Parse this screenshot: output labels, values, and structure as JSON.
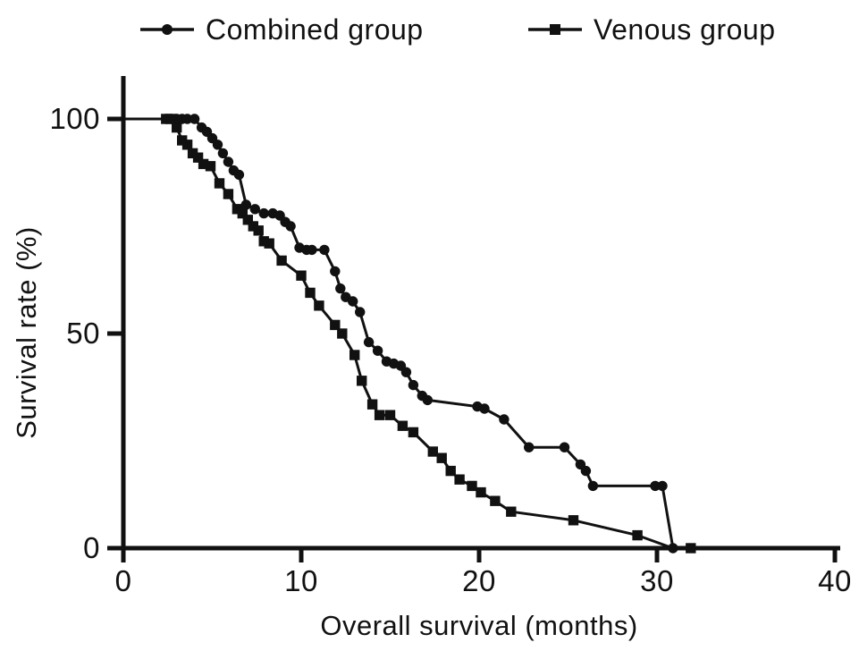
{
  "figure": {
    "background_color": "#ffffff",
    "ink_color": "#111111"
  },
  "legend": {
    "position": "top",
    "entries": [
      {
        "label": "Combined group",
        "marker": "circle"
      },
      {
        "label": "Venous group",
        "marker": "square"
      }
    ]
  },
  "chart_data": {
    "type": "line",
    "title": "",
    "xlabel": "Overall survival (months)",
    "ylabel": "Survival rate (%)",
    "xlim": [
      0,
      40
    ],
    "ylim": [
      0,
      100
    ],
    "xticks": [
      0,
      10,
      20,
      30,
      40
    ],
    "yticks": [
      0,
      50,
      100
    ],
    "grid": false,
    "legend_position": "top",
    "series": [
      {
        "name": "Combined group",
        "marker": "circle",
        "color": "#111111",
        "points": [
          [
            0,
            100,
            0
          ],
          [
            2.4,
            100,
            1
          ],
          [
            2.7,
            100,
            1
          ],
          [
            3.0,
            100,
            1
          ],
          [
            3.3,
            100,
            1
          ],
          [
            3.6,
            100,
            1
          ],
          [
            4.0,
            100,
            1
          ],
          [
            4.4,
            98,
            1
          ],
          [
            4.7,
            97,
            1
          ],
          [
            5.0,
            95.5,
            1
          ],
          [
            5.3,
            94,
            1
          ],
          [
            5.6,
            92,
            1
          ],
          [
            5.9,
            90,
            1
          ],
          [
            6.2,
            88,
            1
          ],
          [
            6.5,
            87,
            1
          ],
          [
            6.9,
            80,
            1
          ],
          [
            7.4,
            79,
            1
          ],
          [
            7.9,
            78,
            1
          ],
          [
            8.4,
            78,
            1
          ],
          [
            8.8,
            77.5,
            1
          ],
          [
            9.1,
            76,
            1
          ],
          [
            9.4,
            75,
            1
          ],
          [
            9.9,
            70,
            1
          ],
          [
            10.3,
            69.5,
            1
          ],
          [
            10.6,
            69.5,
            1
          ],
          [
            11.3,
            69.5,
            1
          ],
          [
            11.9,
            64.5,
            1
          ],
          [
            12.2,
            60.5,
            1
          ],
          [
            12.5,
            58.5,
            1
          ],
          [
            12.9,
            57.5,
            1
          ],
          [
            13.3,
            55,
            1
          ],
          [
            13.8,
            48,
            1
          ],
          [
            14.3,
            46,
            1
          ],
          [
            14.8,
            43.5,
            1
          ],
          [
            15.2,
            43,
            1
          ],
          [
            15.6,
            42.5,
            1
          ],
          [
            15.9,
            41,
            1
          ],
          [
            16.3,
            38,
            1
          ],
          [
            16.8,
            35.5,
            1
          ],
          [
            17.1,
            34.5,
            1
          ],
          [
            19.9,
            33,
            1
          ],
          [
            20.3,
            32.5,
            1
          ],
          [
            21.4,
            30,
            1
          ],
          [
            22.8,
            23.5,
            1
          ],
          [
            24.8,
            23.5,
            1
          ],
          [
            25.7,
            19.5,
            1
          ],
          [
            26.0,
            18,
            1
          ],
          [
            26.4,
            14.5,
            1
          ],
          [
            29.9,
            14.5,
            1
          ],
          [
            30.3,
            14.5,
            1
          ],
          [
            30.9,
            0,
            1
          ]
        ]
      },
      {
        "name": "Venous group",
        "marker": "square",
        "color": "#111111",
        "points": [
          [
            0,
            100,
            0
          ],
          [
            2.4,
            100,
            1
          ],
          [
            2.7,
            100,
            1
          ],
          [
            3.0,
            98,
            1
          ],
          [
            3.3,
            95,
            1
          ],
          [
            3.6,
            94,
            1
          ],
          [
            3.9,
            92,
            1
          ],
          [
            4.2,
            91,
            1
          ],
          [
            4.5,
            89.5,
            1
          ],
          [
            4.9,
            89,
            1
          ],
          [
            5.4,
            85,
            1
          ],
          [
            5.9,
            82.5,
            1
          ],
          [
            6.4,
            79,
            1
          ],
          [
            6.7,
            78,
            1
          ],
          [
            7.0,
            76.5,
            1
          ],
          [
            7.3,
            75,
            1
          ],
          [
            7.6,
            74,
            1
          ],
          [
            7.9,
            71.5,
            1
          ],
          [
            8.2,
            71,
            1
          ],
          [
            8.9,
            67,
            1
          ],
          [
            10.0,
            63.5,
            1
          ],
          [
            10.5,
            59.5,
            1
          ],
          [
            11.0,
            56.5,
            1
          ],
          [
            11.9,
            52,
            1
          ],
          [
            12.3,
            50,
            1
          ],
          [
            13.0,
            45,
            1
          ],
          [
            13.4,
            39,
            1
          ],
          [
            14.0,
            33.5,
            1
          ],
          [
            14.4,
            31,
            1
          ],
          [
            15.0,
            31,
            1
          ],
          [
            15.7,
            28.5,
            1
          ],
          [
            16.3,
            27,
            1
          ],
          [
            17.4,
            22.5,
            1
          ],
          [
            17.9,
            21,
            1
          ],
          [
            18.4,
            18,
            1
          ],
          [
            18.9,
            16,
            1
          ],
          [
            19.6,
            14.5,
            1
          ],
          [
            20.1,
            13,
            1
          ],
          [
            20.9,
            11,
            1
          ],
          [
            21.8,
            8.5,
            1
          ],
          [
            25.3,
            6.5,
            1
          ],
          [
            28.9,
            3,
            1
          ],
          [
            30.9,
            0,
            0
          ],
          [
            31.9,
            0,
            1
          ]
        ]
      }
    ]
  }
}
